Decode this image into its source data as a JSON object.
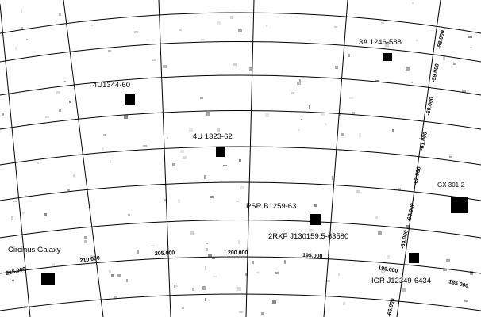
{
  "map": {
    "type": "x-ray sky map",
    "coordinate_grid": "galactic longitude / latitude",
    "background": "#ffffff",
    "grid_color": "#000000",
    "source_color": "#000000"
  },
  "sources": [
    {
      "name": "3A 1246-588",
      "strength": "medium"
    },
    {
      "name": "4U1344-60",
      "strength": "medium"
    },
    {
      "name": "4U 1323-62",
      "strength": "medium"
    },
    {
      "name": "GX 301-2",
      "strength": "strong"
    },
    {
      "name": "PSR B1259-63",
      "strength": ""
    },
    {
      "name": "2RXP J130159.5-63580",
      "strength": "medium"
    },
    {
      "name": "Circinus Galaxy",
      "strength": "strong"
    },
    {
      "name": "IGR J12349-6434",
      "strength": "medium"
    }
  ],
  "longitude_ticks": [
    "215.000",
    "210.000",
    "205.000",
    "200.000",
    "195.000",
    "190.000",
    "185.000"
  ],
  "latitude_ticks": [
    "-58.000",
    "-59.000",
    "-60.000",
    "-61.000",
    "-62.000",
    "-63.000",
    "-64.000",
    "-66.000"
  ]
}
